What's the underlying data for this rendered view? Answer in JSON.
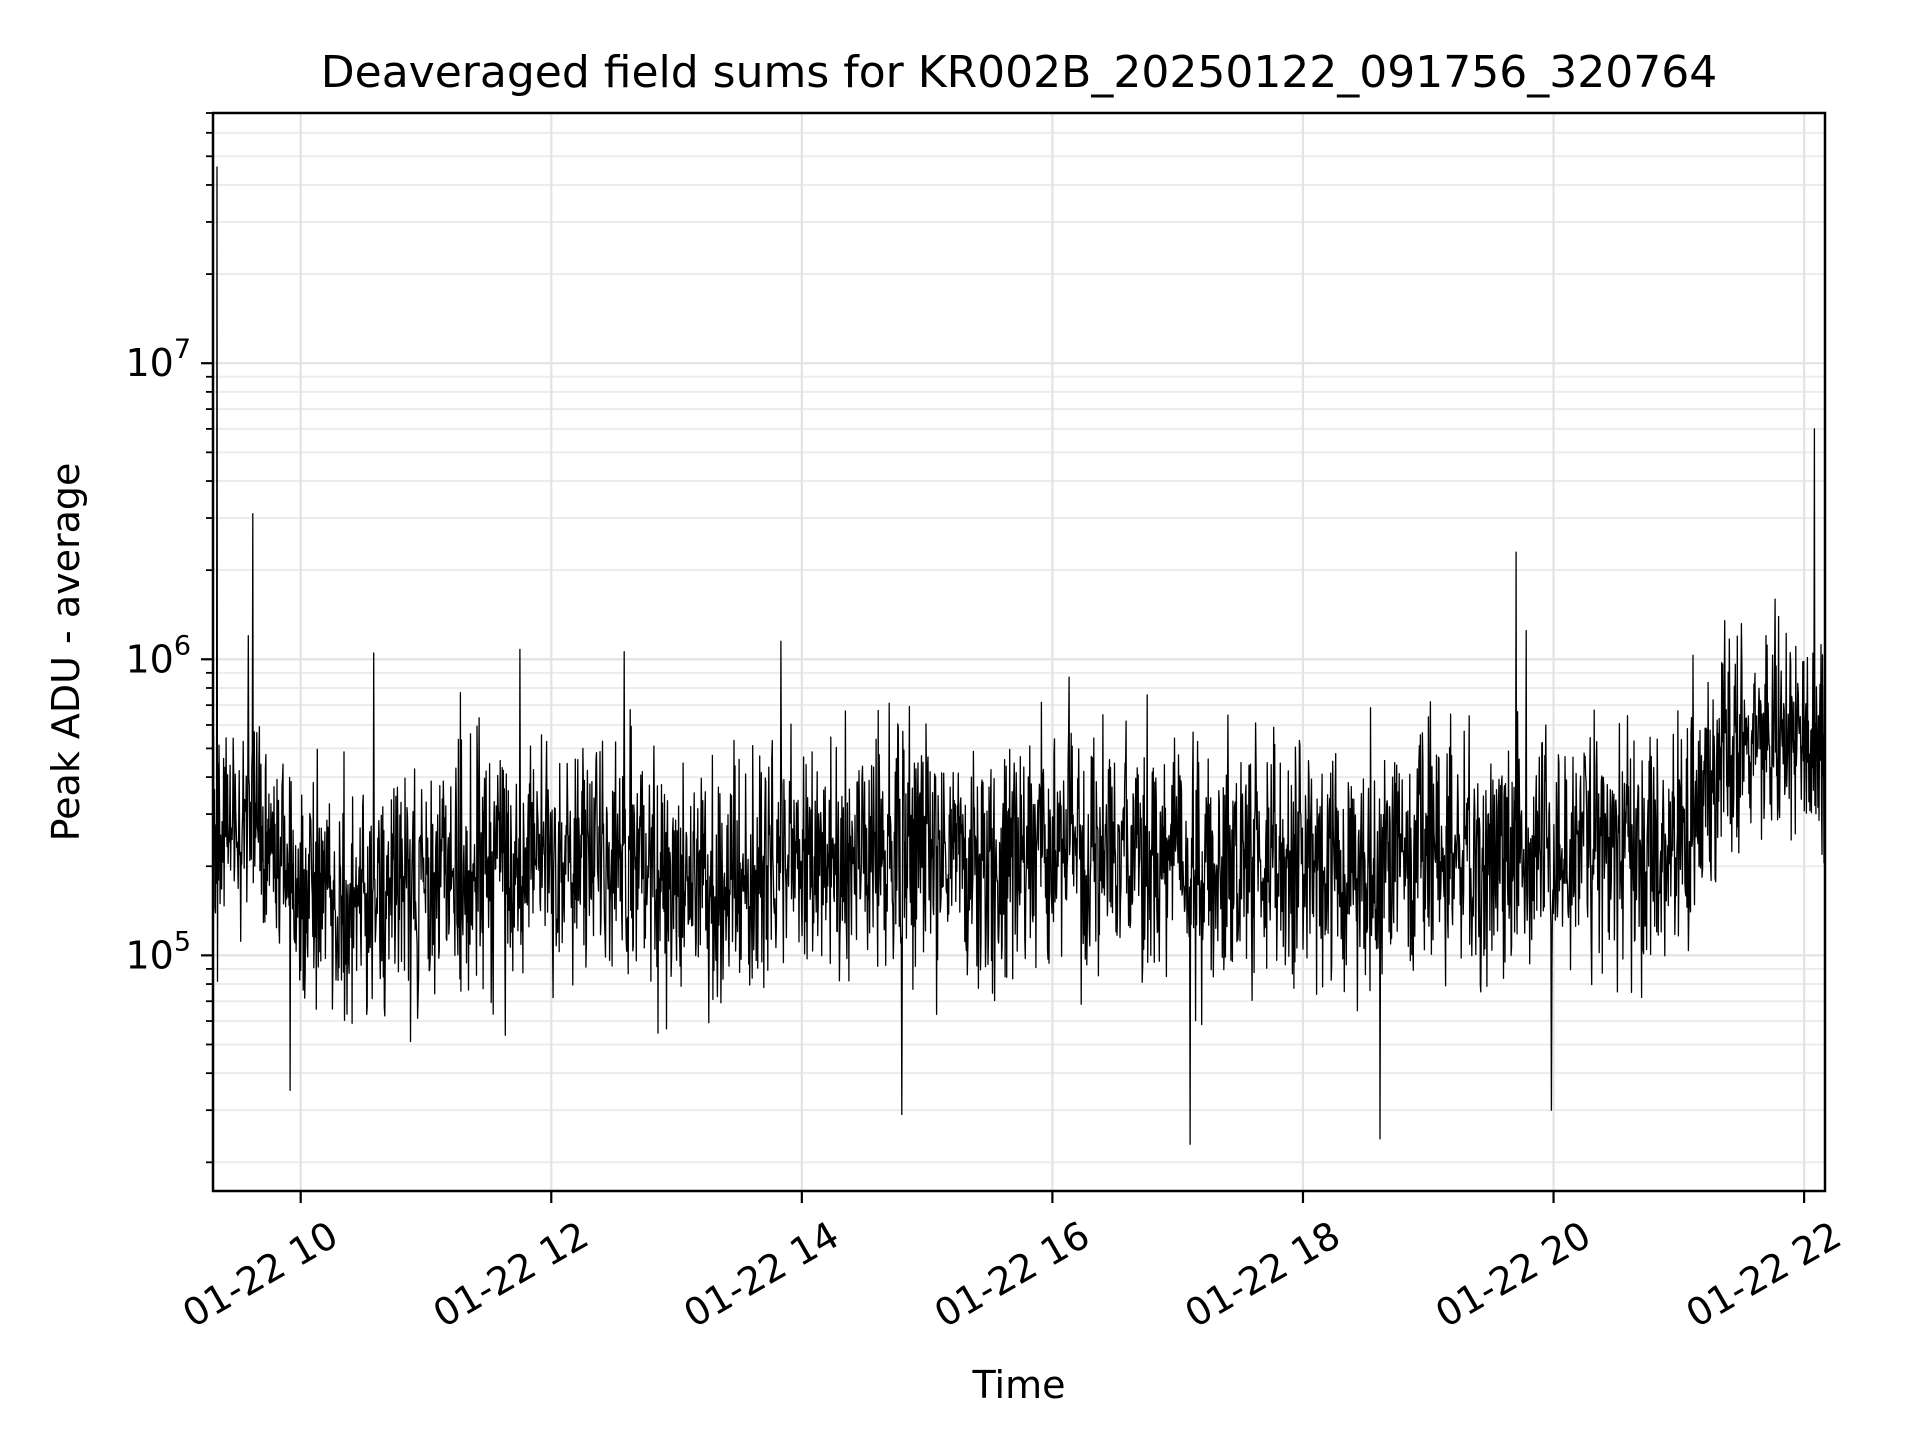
{
  "chart_data": {
    "type": "line",
    "title": "Deaveraged field sums for KR002B_20250122_091756_320764",
    "xlabel": "Time",
    "ylabel": "Peak ADU - average",
    "x_range": [
      "2025-01-22T09:18",
      "2025-01-22T22:10"
    ],
    "y_scale": "log",
    "ylim": [
      16000,
      70000000
    ],
    "grid": true,
    "x_ticks": [
      {
        "t": "2025-01-22T10:00",
        "label": "01-22 10"
      },
      {
        "t": "2025-01-22T12:00",
        "label": "01-22 12"
      },
      {
        "t": "2025-01-22T14:00",
        "label": "01-22 14"
      },
      {
        "t": "2025-01-22T16:00",
        "label": "01-22 16"
      },
      {
        "t": "2025-01-22T18:00",
        "label": "01-22 18"
      },
      {
        "t": "2025-01-22T20:00",
        "label": "01-22 20"
      },
      {
        "t": "2025-01-22T22:00",
        "label": "01-22 22"
      }
    ],
    "y_ticks": [
      {
        "value": 100000,
        "base": "10",
        "exp": "5"
      },
      {
        "value": 1000000,
        "base": "10",
        "exp": "6"
      },
      {
        "value": 10000000,
        "base": "10",
        "exp": "7"
      }
    ],
    "series_color": "#000000",
    "baseline": [
      {
        "t": "2025-01-22T09:18",
        "y": 240000
      },
      {
        "t": "2025-01-22T09:40",
        "y": 280000
      },
      {
        "t": "2025-01-22T10:00",
        "y": 160000
      },
      {
        "t": "2025-01-22T10:30",
        "y": 160000
      },
      {
        "t": "2025-01-22T11:00",
        "y": 190000
      },
      {
        "t": "2025-01-22T11:30",
        "y": 200000
      },
      {
        "t": "2025-01-22T12:00",
        "y": 220000
      },
      {
        "t": "2025-01-22T12:30",
        "y": 220000
      },
      {
        "t": "2025-01-22T13:00",
        "y": 180000
      },
      {
        "t": "2025-01-22T13:30",
        "y": 160000
      },
      {
        "t": "2025-01-22T14:00",
        "y": 220000
      },
      {
        "t": "2025-01-22T15:00",
        "y": 210000
      },
      {
        "t": "2025-01-22T16:00",
        "y": 230000
      },
      {
        "t": "2025-01-22T17:00",
        "y": 200000
      },
      {
        "t": "2025-01-22T18:00",
        "y": 200000
      },
      {
        "t": "2025-01-22T19:00",
        "y": 230000
      },
      {
        "t": "2025-01-22T20:00",
        "y": 210000
      },
      {
        "t": "2025-01-22T21:00",
        "y": 240000
      },
      {
        "t": "2025-01-22T21:30",
        "y": 500000
      },
      {
        "t": "2025-01-22T22:10",
        "y": 580000
      }
    ],
    "spikes": [
      {
        "t": "2025-01-22T09:20",
        "y": 46000000
      },
      {
        "t": "2025-01-22T09:37",
        "y": 3100000
      },
      {
        "t": "2025-01-22T09:35",
        "y": 1200000
      },
      {
        "t": "2025-01-22T10:35",
        "y": 1050000
      },
      {
        "t": "2025-01-22T11:45",
        "y": 1080000
      },
      {
        "t": "2025-01-22T12:35",
        "y": 1060000
      },
      {
        "t": "2025-01-22T13:50",
        "y": 1150000
      },
      {
        "t": "2025-01-22T16:08",
        "y": 870000
      },
      {
        "t": "2025-01-22T19:42",
        "y": 2300000
      },
      {
        "t": "2025-01-22T19:47",
        "y": 1250000
      },
      {
        "t": "2025-01-22T21:22",
        "y": 1350000
      },
      {
        "t": "2025-01-22T21:30",
        "y": 1320000
      },
      {
        "t": "2025-01-22T22:05",
        "y": 6000000
      },
      {
        "t": "2025-01-22T09:55",
        "y": 35000
      },
      {
        "t": "2025-01-22T14:48",
        "y": 29000
      },
      {
        "t": "2025-01-22T17:06",
        "y": 23000
      },
      {
        "t": "2025-01-22T18:37",
        "y": 24000
      },
      {
        "t": "2025-01-22T19:59",
        "y": 30000
      }
    ]
  }
}
